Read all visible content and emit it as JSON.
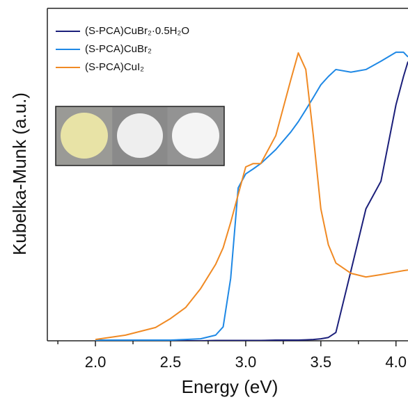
{
  "chart_data": {
    "type": "line",
    "x_label": "Energy (eV)",
    "y_label": "Kubelka-Munk (a.u.)",
    "x": [
      2.0,
      2.2,
      2.4,
      2.5,
      2.6,
      2.7,
      2.8,
      2.85,
      2.9,
      2.95,
      3.0,
      3.05,
      3.1,
      3.2,
      3.3,
      3.35,
      3.4,
      3.45,
      3.5,
      3.55,
      3.6,
      3.7,
      3.8,
      3.9,
      4.0,
      4.05,
      4.08
    ],
    "series": [
      {
        "name": "(S-PCA)CuBr₂·0.5H₂O",
        "color": "#1b1f7a",
        "values": [
          0,
          0,
          0,
          0,
          0,
          0,
          0.001,
          0.001,
          0.001,
          0.001,
          0.001,
          0.001,
          0.001,
          0.002,
          0.002,
          0.002,
          0.003,
          0.004,
          0.006,
          0.01,
          0.025,
          0.21,
          0.397,
          0.48,
          0.71,
          0.795,
          0.84
        ]
      },
      {
        "name": "(S-PCA)CuBr₂",
        "color": "#1e88e5",
        "values": [
          0.002,
          0.002,
          0.002,
          0.002,
          0.004,
          0.006,
          0.017,
          0.042,
          0.188,
          0.46,
          0.502,
          0.517,
          0.533,
          0.575,
          0.628,
          0.659,
          0.695,
          0.732,
          0.77,
          0.795,
          0.816,
          0.808,
          0.816,
          0.841,
          0.868,
          0.868,
          0.854
        ]
      },
      {
        "name": "(S-PCA)CuI₂",
        "color": "#f08a24",
        "values": [
          0.004,
          0.017,
          0.04,
          0.067,
          0.1,
          0.157,
          0.23,
          0.28,
          0.356,
          0.44,
          0.523,
          0.533,
          0.533,
          0.617,
          0.785,
          0.866,
          0.816,
          0.617,
          0.397,
          0.289,
          0.234,
          0.203,
          0.192,
          0.199,
          0.207,
          0.211,
          0.213
        ]
      }
    ],
    "xlim": [
      1.68,
      4.08
    ],
    "ylim": [
      0,
      1
    ],
    "xticks": [
      {
        "value": 2,
        "label": "2.0"
      },
      {
        "value": 2.5,
        "label": "2.5"
      },
      {
        "value": 3,
        "label": "3.0"
      },
      {
        "value": 3.5,
        "label": "3.5"
      },
      {
        "value": 4,
        "label": "4.0"
      }
    ],
    "xminorticks": [
      1.75,
      2.25,
      2.75,
      3.25,
      3.75
    ],
    "grid": false
  }
}
